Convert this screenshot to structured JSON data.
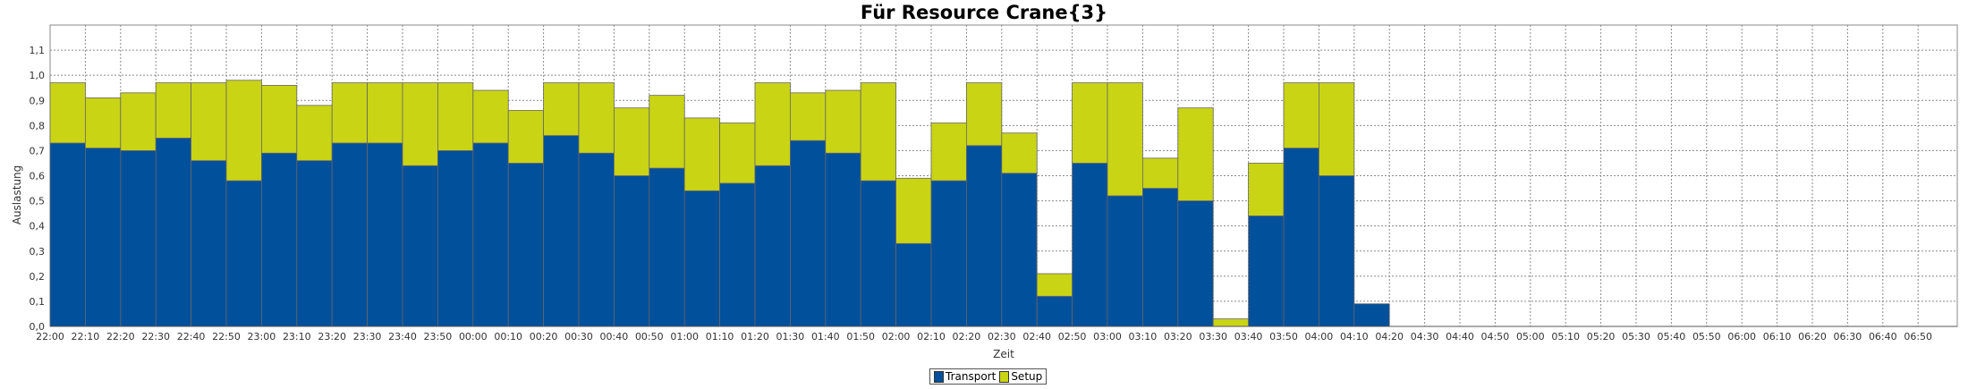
{
  "chart_data": {
    "type": "bar",
    "stacked": true,
    "title": "Für Resource Crane{3}",
    "xlabel": "Zeit",
    "ylabel": "Auslastung",
    "ylim": [
      0,
      1.2
    ],
    "yticks": [
      "0,0",
      "0,1",
      "0,2",
      "0,3",
      "0,4",
      "0,5",
      "0,6",
      "0,7",
      "0,8",
      "0,9",
      "1,0",
      "1,1"
    ],
    "grid": true,
    "legend_position": "bottom-center",
    "categories": [
      "22:00",
      "22:10",
      "22:20",
      "22:30",
      "22:40",
      "22:50",
      "23:00",
      "23:10",
      "23:20",
      "23:30",
      "23:40",
      "23:50",
      "00:00",
      "00:10",
      "00:20",
      "00:30",
      "00:40",
      "00:50",
      "01:00",
      "01:10",
      "01:20",
      "01:30",
      "01:40",
      "01:50",
      "02:00",
      "02:10",
      "02:20",
      "02:30",
      "02:40",
      "02:50",
      "03:00",
      "03:10",
      "03:20",
      "03:30",
      "03:40",
      "03:50",
      "04:00",
      "04:10",
      "04:20",
      "04:30",
      "04:40",
      "04:50",
      "05:00",
      "05:10",
      "05:20",
      "05:30",
      "05:40",
      "05:50",
      "06:00",
      "06:10",
      "06:20",
      "06:30",
      "06:40",
      "06:50"
    ],
    "series": [
      {
        "name": "Transport",
        "color": "#00509c",
        "values": [
          0.73,
          0.71,
          0.7,
          0.75,
          0.66,
          0.58,
          0.69,
          0.66,
          0.73,
          0.73,
          0.64,
          0.7,
          0.73,
          0.65,
          0.76,
          0.69,
          0.6,
          0.63,
          0.54,
          0.57,
          0.64,
          0.74,
          0.69,
          0.58,
          0.33,
          0.58,
          0.72,
          0.61,
          0.12,
          0.65,
          0.52,
          0.55,
          0.5,
          0,
          0.44,
          0.71,
          0.6,
          0.09,
          0,
          0,
          0,
          0,
          0,
          0,
          0,
          0,
          0,
          0,
          0,
          0,
          0,
          0,
          0,
          0
        ]
      },
      {
        "name": "Setup",
        "color": "#c9d415",
        "values": [
          0.24,
          0.2,
          0.23,
          0.22,
          0.31,
          0.4,
          0.27,
          0.22,
          0.24,
          0.24,
          0.33,
          0.27,
          0.21,
          0.21,
          0.21,
          0.28,
          0.27,
          0.29,
          0.29,
          0.24,
          0.33,
          0.19,
          0.25,
          0.39,
          0.26,
          0.23,
          0.25,
          0.16,
          0.09,
          0.32,
          0.45,
          0.12,
          0.37,
          0.03,
          0.21,
          0.26,
          0.37,
          0,
          0,
          0,
          0,
          0,
          0,
          0,
          0,
          0,
          0,
          0,
          0,
          0,
          0,
          0,
          0,
          0
        ]
      }
    ]
  }
}
